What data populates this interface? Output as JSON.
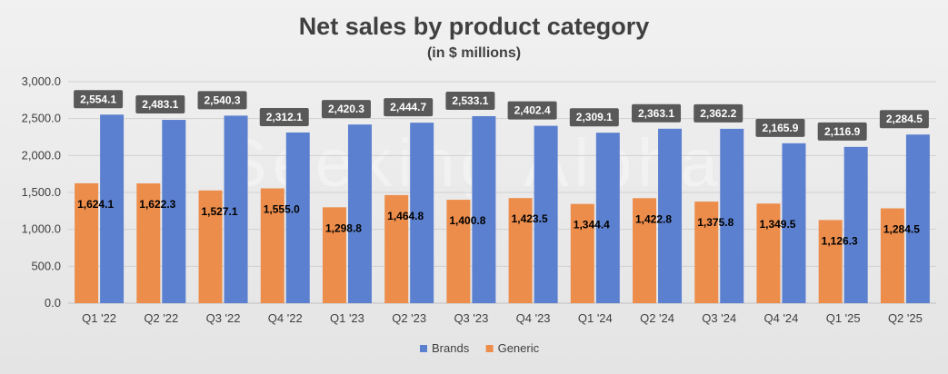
{
  "chart_data": {
    "type": "bar",
    "title": "Net sales by product category",
    "subtitle": "(in $ millions)",
    "watermark": "Seeking Alpha",
    "categories": [
      "Q1 '22",
      "Q2 '22",
      "Q3 '22",
      "Q4 '22",
      "Q1 '23",
      "Q2 '23",
      "Q3 '23",
      "Q4 '23",
      "Q1 '24",
      "Q2 '24",
      "Q3 '24",
      "Q4 '24",
      "Q1 '25",
      "Q2 '25"
    ],
    "series": [
      {
        "name": "Generic",
        "color": "#ed8d4b",
        "values": [
          1624.1,
          1622.3,
          1527.1,
          1555.0,
          1298.8,
          1464.8,
          1400.8,
          1423.5,
          1344.4,
          1422.8,
          1375.8,
          1349.5,
          1126.3,
          1284.5
        ],
        "labels": [
          "1,624.1",
          "1,622.3",
          "1,527.1",
          "1,555.0",
          "1,298.8",
          "1,464.8",
          "1,400.8",
          "1,423.5",
          "1,344.4",
          "1,422.8",
          "1,375.8",
          "1,349.5",
          "1,126.3",
          "1,284.5"
        ]
      },
      {
        "name": "Brands",
        "color": "#5b80cf",
        "values": [
          2554.1,
          2483.1,
          2540.3,
          2312.1,
          2420.3,
          2444.7,
          2533.1,
          2402.4,
          2309.1,
          2363.1,
          2362.2,
          2165.9,
          2116.9,
          2284.5
        ],
        "labels": [
          "2,554.1",
          "2,483.1",
          "2,540.3",
          "2,312.1",
          "2,420.3",
          "2,444.7",
          "2,533.1",
          "2,402.4",
          "2,309.1",
          "2,363.1",
          "2,362.2",
          "2,165.9",
          "2,116.9",
          "2,284.5"
        ]
      }
    ],
    "legend_order": [
      "Brands",
      "Generic"
    ],
    "ylim": [
      0,
      3000
    ],
    "yticks": [
      0,
      500,
      1000,
      1500,
      2000,
      2500,
      3000
    ],
    "ytick_labels": [
      "0.0",
      "500.0",
      "1,000.0",
      "1,500.0",
      "2,000.0",
      "2,500.0",
      "3,000.0"
    ],
    "grid": true,
    "legend_position": "bottom",
    "label_box_color": "#595959"
  }
}
